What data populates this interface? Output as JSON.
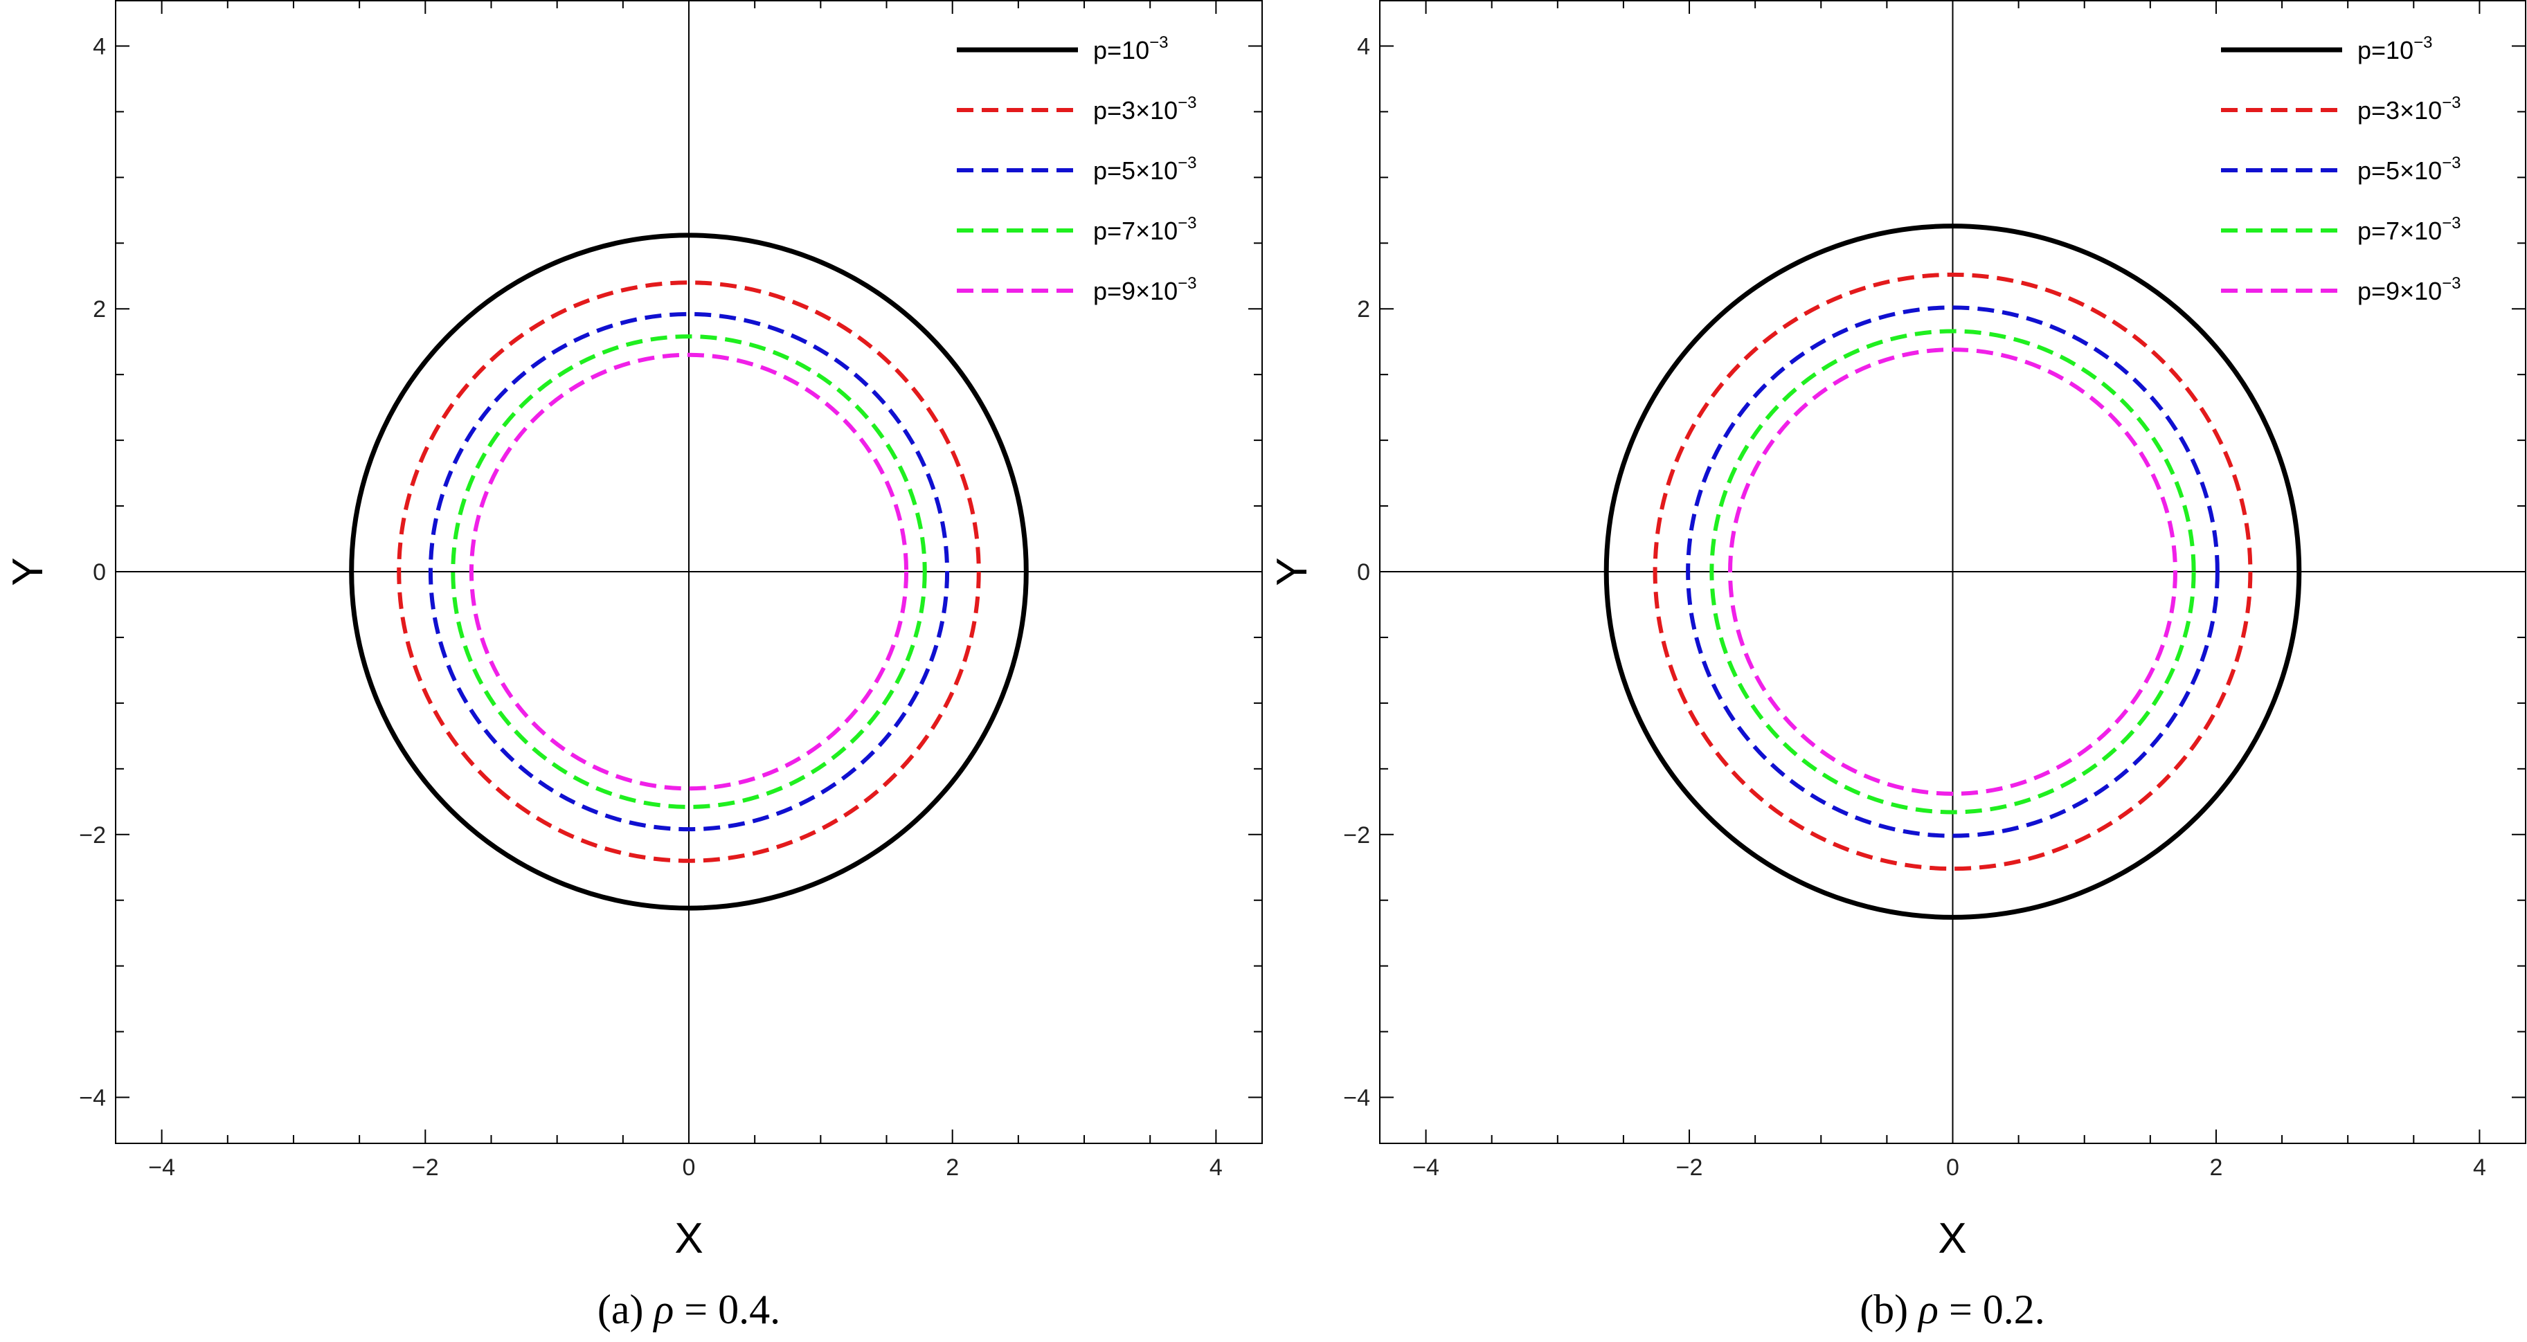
{
  "colors": {
    "p1": "#000000",
    "p3": "#e31a1c",
    "p5": "#1010d0",
    "p7": "#1fef1f",
    "p9": "#f020e8",
    "frame": "#000000",
    "axis": "#000000"
  },
  "legend_entries": [
    {
      "key": "p1",
      "prefix": "p=",
      "base": "10",
      "exponent": "−3",
      "style": "solid"
    },
    {
      "key": "p3",
      "prefix": "p=3×",
      "base": "10",
      "exponent": "−3",
      "style": "dashed"
    },
    {
      "key": "p5",
      "prefix": "p=5×",
      "base": "10",
      "exponent": "−3",
      "style": "dashed"
    },
    {
      "key": "p7",
      "prefix": "p=7×",
      "base": "10",
      "exponent": "−3",
      "style": "dashed"
    },
    {
      "key": "p9",
      "prefix": "p=9×",
      "base": "10",
      "exponent": "−3",
      "style": "dashed"
    }
  ],
  "chart_data": [
    {
      "type": "line",
      "description": "Closed circular contours (shadow radius) for several p values",
      "caption": {
        "label": "(a)",
        "variable": "ρ",
        "expression": " = 0.4."
      },
      "xlabel": "X",
      "ylabel": "Y",
      "xlim": [
        -4.35,
        4.35
      ],
      "ylim": [
        -4.35,
        4.35
      ],
      "xticks": [
        -4,
        -2,
        0,
        2,
        4
      ],
      "yticks": [
        -4,
        -2,
        0,
        2,
        4
      ],
      "minor_step": 0.5,
      "series": [
        {
          "name": "p=10^-3",
          "key": "p1",
          "radius": 2.56
        },
        {
          "name": "p=3×10^-3",
          "key": "p3",
          "radius": 2.2
        },
        {
          "name": "p=5×10^-3",
          "key": "p5",
          "radius": 1.96
        },
        {
          "name": "p=7×10^-3",
          "key": "p7",
          "radius": 1.79
        },
        {
          "name": "p=9×10^-3",
          "key": "p9",
          "radius": 1.65
        }
      ]
    },
    {
      "type": "line",
      "description": "Closed circular contours (shadow radius) for several p values",
      "caption": {
        "label": "(b)",
        "variable": "ρ",
        "expression": " = 0.2."
      },
      "xlabel": "X",
      "ylabel": "Y",
      "xlim": [
        -4.35,
        4.35
      ],
      "ylim": [
        -4.35,
        4.35
      ],
      "xticks": [
        -4,
        -2,
        0,
        2,
        4
      ],
      "yticks": [
        -4,
        -2,
        0,
        2,
        4
      ],
      "minor_step": 0.5,
      "series": [
        {
          "name": "p=10^-3",
          "key": "p1",
          "radius": 2.63
        },
        {
          "name": "p=3×10^-3",
          "key": "p3",
          "radius": 2.26
        },
        {
          "name": "p=5×10^-3",
          "key": "p5",
          "radius": 2.01
        },
        {
          "name": "p=7×10^-3",
          "key": "p7",
          "radius": 1.83
        },
        {
          "name": "p=9×10^-3",
          "key": "p9",
          "radius": 1.69
        }
      ]
    }
  ]
}
